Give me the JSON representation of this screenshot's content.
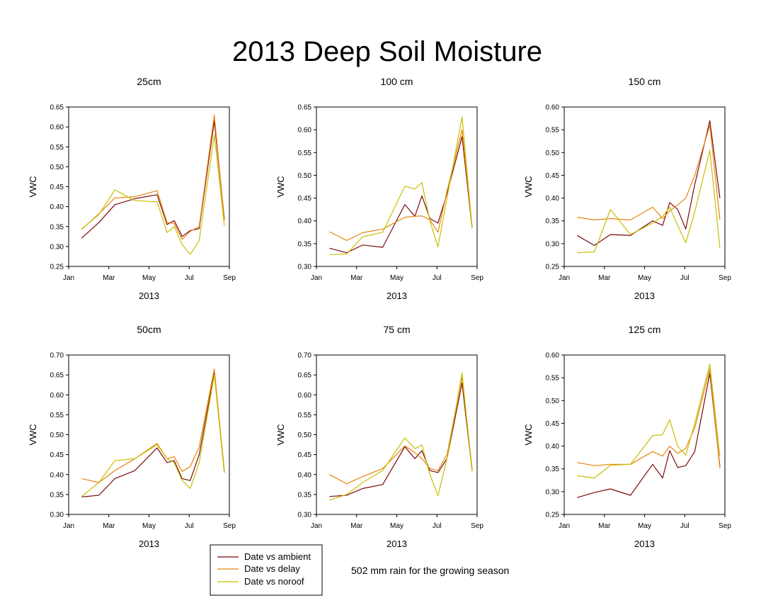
{
  "figure": {
    "title": "2013 Deep Soil Moisture",
    "note": "502 mm rain for the growing season",
    "legend": {
      "placement": "bottom-left",
      "entries": [
        {
          "label": "Date vs ambient",
          "series": "ambient"
        },
        {
          "label": "Date vs delay",
          "series": "delay"
        },
        {
          "label": "Date vs noroof",
          "series": "noroof"
        }
      ]
    },
    "colors": {
      "ambient": "#7b0a0a",
      "delay": "#e8830e",
      "noroof": "#c8c000"
    }
  },
  "chart_data": [
    {
      "type": "line",
      "title": "25cm",
      "xlabel": "2013",
      "ylabel": "VWC",
      "x_ticks": [
        "Jan",
        "Mar",
        "May",
        "Jul",
        "Sep"
      ],
      "xlim": [
        0,
        8
      ],
      "ylim": [
        0.25,
        0.65
      ],
      "y_ticks": [
        "0.25",
        "0.30",
        "0.35",
        "0.40",
        "0.45",
        "0.50",
        "0.55",
        "0.60",
        "0.65"
      ],
      "x": [
        0.65,
        1.5,
        2.3,
        3.3,
        4.4,
        4.9,
        5.25,
        5.65,
        6.05,
        6.5,
        7.25,
        7.75
      ],
      "series": [
        {
          "name": "Date vs ambient",
          "key": "ambient",
          "values": [
            0.321,
            0.36,
            0.405,
            0.42,
            0.43,
            0.355,
            0.365,
            0.325,
            0.34,
            0.345,
            0.615,
            0.37
          ]
        },
        {
          "name": "Date vs delay",
          "key": "delay",
          "values": [
            0.343,
            0.382,
            0.422,
            0.425,
            0.44,
            0.36,
            0.358,
            0.318,
            0.338,
            0.35,
            0.63,
            0.365
          ]
        },
        {
          "name": "Date vs noroof",
          "key": "noroof",
          "values": [
            0.344,
            0.38,
            0.442,
            0.415,
            0.412,
            0.335,
            0.35,
            0.305,
            0.28,
            0.315,
            0.58,
            0.352
          ]
        }
      ]
    },
    {
      "type": "line",
      "title": "100 cm",
      "xlabel": "2013",
      "ylabel": "VWC",
      "x_ticks": [
        "Jan",
        "Mar",
        "May",
        "Jul",
        "Sep"
      ],
      "xlim": [
        0,
        8
      ],
      "ylim": [
        0.3,
        0.65
      ],
      "y_ticks": [
        "0.30",
        "0.35",
        "0.40",
        "0.45",
        "0.50",
        "0.55",
        "0.60",
        "0.65"
      ],
      "x": [
        0.65,
        1.5,
        2.3,
        3.3,
        4.4,
        4.9,
        5.25,
        5.65,
        6.05,
        6.5,
        7.25,
        7.75
      ],
      "series": [
        {
          "name": "Date vs ambient",
          "key": "ambient",
          "values": [
            0.34,
            0.33,
            0.347,
            0.342,
            0.436,
            0.41,
            0.455,
            0.405,
            0.395,
            0.46,
            0.585,
            0.385
          ]
        },
        {
          "name": "Date vs delay",
          "key": "delay",
          "values": [
            0.376,
            0.357,
            0.374,
            0.382,
            0.408,
            0.41,
            0.411,
            0.402,
            0.375,
            0.465,
            0.6,
            0.388
          ]
        },
        {
          "name": "Date vs noroof",
          "key": "noroof",
          "values": [
            0.326,
            0.327,
            0.365,
            0.375,
            0.476,
            0.47,
            0.484,
            0.4,
            0.343,
            0.45,
            0.628,
            0.386
          ]
        }
      ]
    },
    {
      "type": "line",
      "title": "150 cm",
      "xlabel": "2013",
      "ylabel": "VWC",
      "x_ticks": [
        "Jan",
        "Mar",
        "May",
        "Jul",
        "Sep"
      ],
      "xlim": [
        0,
        8
      ],
      "ylim": [
        0.25,
        0.6
      ],
      "y_ticks": [
        "0.25",
        "0.30",
        "0.35",
        "0.40",
        "0.45",
        "0.50",
        "0.55",
        "0.60"
      ],
      "x": [
        0.65,
        1.5,
        2.3,
        3.3,
        4.4,
        4.9,
        5.25,
        5.65,
        6.05,
        6.5,
        7.25,
        7.75
      ],
      "series": [
        {
          "name": "Date vs ambient",
          "key": "ambient",
          "values": [
            0.318,
            0.296,
            0.32,
            0.318,
            0.35,
            0.34,
            0.39,
            0.375,
            0.332,
            0.43,
            0.57,
            0.4
          ]
        },
        {
          "name": "Date vs delay",
          "key": "delay",
          "values": [
            0.358,
            0.352,
            0.355,
            0.352,
            0.38,
            0.355,
            0.372,
            0.385,
            0.4,
            0.45,
            0.56,
            0.353
          ]
        },
        {
          "name": "Date vs noroof",
          "key": "noroof",
          "values": [
            0.28,
            0.282,
            0.375,
            0.32,
            0.345,
            0.36,
            0.38,
            0.34,
            0.302,
            0.37,
            0.505,
            0.29
          ]
        }
      ]
    },
    {
      "type": "line",
      "title": "50cm",
      "xlabel": "2013",
      "ylabel": "VWC",
      "x_ticks": [
        "Jan",
        "Mar",
        "May",
        "Jul",
        "Sep"
      ],
      "xlim": [
        0,
        8
      ],
      "ylim": [
        0.3,
        0.7
      ],
      "y_ticks": [
        "0.30",
        "0.35",
        "0.40",
        "0.45",
        "0.50",
        "0.55",
        "0.60",
        "0.65",
        "0.70"
      ],
      "x": [
        0.65,
        1.5,
        2.3,
        3.3,
        4.4,
        4.9,
        5.25,
        5.65,
        6.05,
        6.5,
        7.25,
        7.75
      ],
      "series": [
        {
          "name": "Date vs ambient",
          "key": "ambient",
          "values": [
            0.344,
            0.348,
            0.39,
            0.41,
            0.467,
            0.43,
            0.435,
            0.39,
            0.385,
            0.45,
            0.655,
            0.405
          ]
        },
        {
          "name": "Date vs delay",
          "key": "delay",
          "values": [
            0.39,
            0.38,
            0.41,
            0.44,
            0.478,
            0.44,
            0.445,
            0.408,
            0.42,
            0.47,
            0.665,
            0.41
          ]
        },
        {
          "name": "Date vs noroof",
          "key": "noroof",
          "values": [
            0.345,
            0.38,
            0.435,
            0.44,
            0.475,
            0.44,
            0.43,
            0.385,
            0.365,
            0.43,
            0.65,
            0.405
          ]
        }
      ]
    },
    {
      "type": "line",
      "title": "75 cm",
      "xlabel": "2013",
      "ylabel": "VWC",
      "x_ticks": [
        "Jan",
        "Mar",
        "May",
        "Jul",
        "Sep"
      ],
      "xlim": [
        0,
        8
      ],
      "ylim": [
        0.3,
        0.7
      ],
      "y_ticks": [
        "0.30",
        "0.35",
        "0.40",
        "0.45",
        "0.50",
        "0.55",
        "0.60",
        "0.65",
        "0.70"
      ],
      "x": [
        0.65,
        1.5,
        2.3,
        3.3,
        4.4,
        4.9,
        5.25,
        5.65,
        6.05,
        6.5,
        7.25,
        7.75
      ],
      "series": [
        {
          "name": "Date vs ambient",
          "key": "ambient",
          "values": [
            0.345,
            0.348,
            0.365,
            0.375,
            0.47,
            0.44,
            0.46,
            0.41,
            0.405,
            0.44,
            0.63,
            0.41
          ]
        },
        {
          "name": "Date vs delay",
          "key": "delay",
          "values": [
            0.4,
            0.377,
            0.395,
            0.415,
            0.472,
            0.455,
            0.44,
            0.415,
            0.41,
            0.45,
            0.645,
            0.415
          ]
        },
        {
          "name": "Date vs noroof",
          "key": "noroof",
          "values": [
            0.336,
            0.35,
            0.38,
            0.41,
            0.492,
            0.465,
            0.475,
            0.4,
            0.347,
            0.44,
            0.655,
            0.408
          ]
        }
      ]
    },
    {
      "type": "line",
      "title": "125 cm",
      "xlabel": "2013",
      "ylabel": "VWC",
      "x_ticks": [
        "Jan",
        "Mar",
        "May",
        "Jul",
        "Sep"
      ],
      "xlim": [
        0,
        8
      ],
      "ylim": [
        0.25,
        0.6
      ],
      "y_ticks": [
        "0.25",
        "0.30",
        "0.35",
        "0.40",
        "0.45",
        "0.50",
        "0.55",
        "0.60"
      ],
      "x": [
        0.65,
        1.5,
        2.3,
        3.3,
        4.4,
        4.9,
        5.25,
        5.65,
        6.05,
        6.5,
        7.25,
        7.75
      ],
      "series": [
        {
          "name": "Date vs ambient",
          "key": "ambient",
          "values": [
            0.287,
            0.298,
            0.306,
            0.292,
            0.36,
            0.33,
            0.39,
            0.353,
            0.357,
            0.388,
            0.56,
            0.355
          ]
        },
        {
          "name": "Date vs delay",
          "key": "delay",
          "values": [
            0.364,
            0.357,
            0.36,
            0.36,
            0.388,
            0.378,
            0.4,
            0.384,
            0.395,
            0.44,
            0.57,
            0.352
          ]
        },
        {
          "name": "Date vs noroof",
          "key": "noroof",
          "values": [
            0.335,
            0.33,
            0.358,
            0.36,
            0.423,
            0.425,
            0.458,
            0.4,
            0.38,
            0.45,
            0.58,
            0.378
          ]
        }
      ]
    }
  ]
}
